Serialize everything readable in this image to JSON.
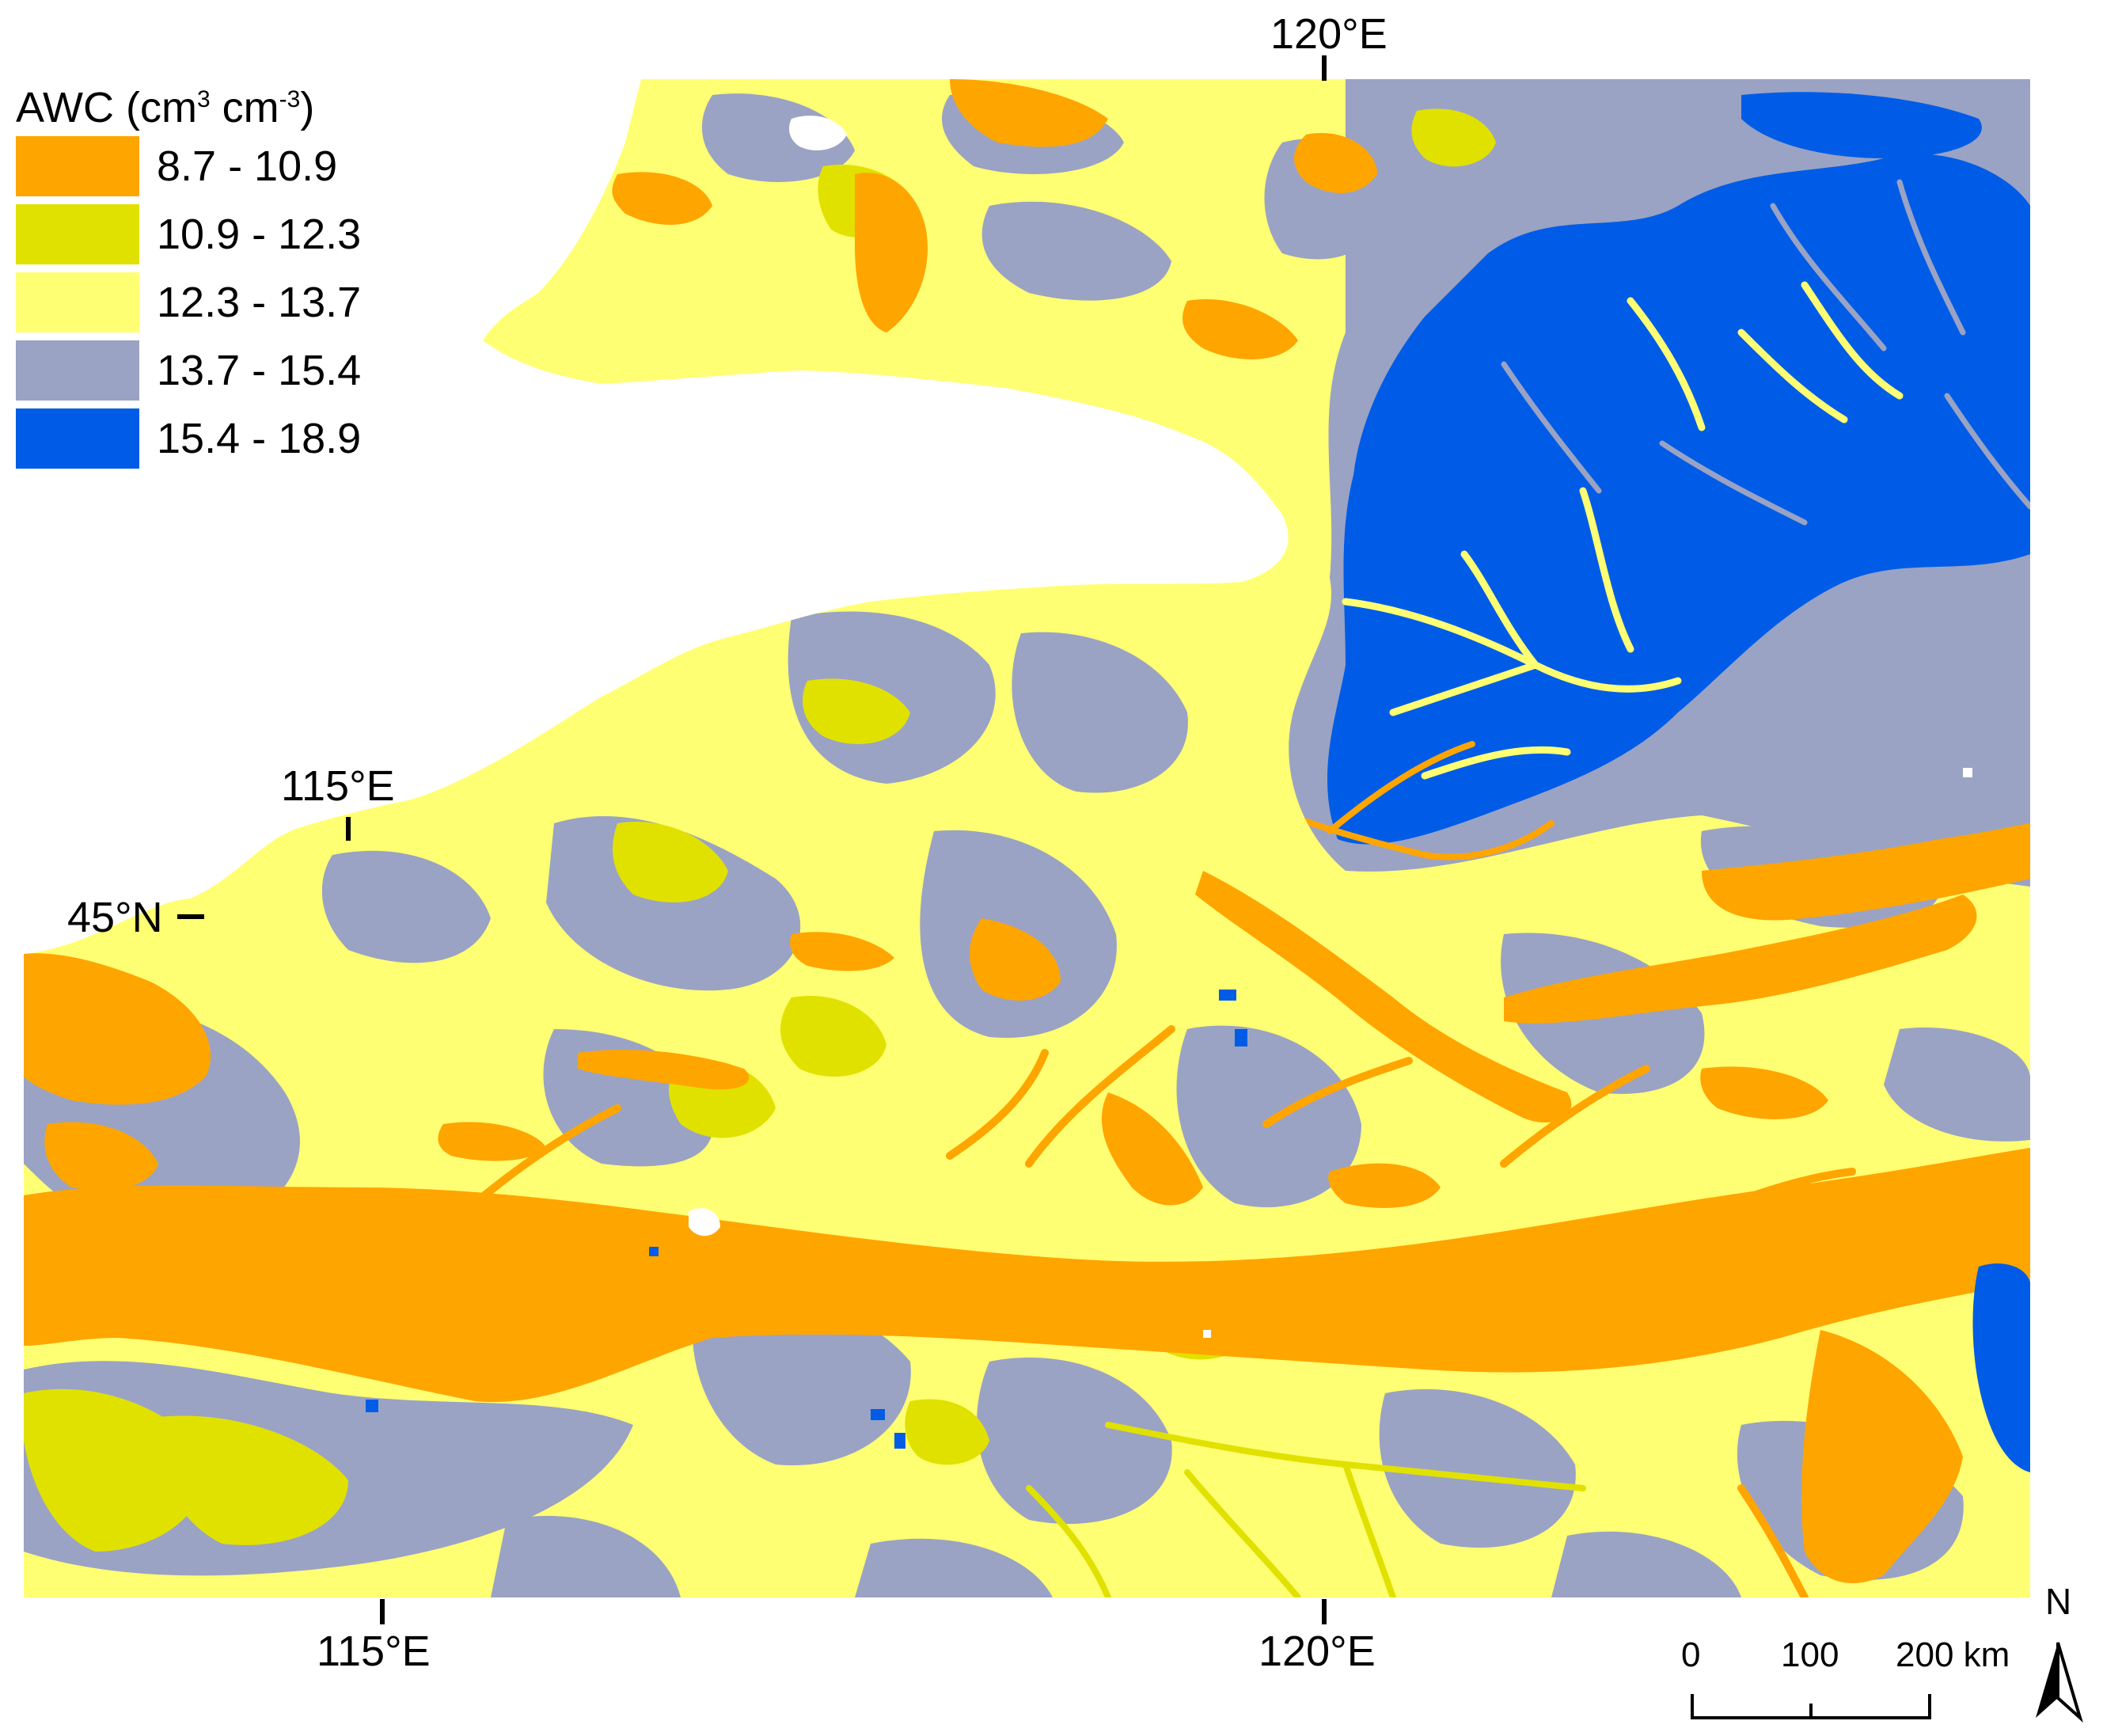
{
  "legend": {
    "title_prefix": "AWC (cm",
    "title_sup1": "3",
    "title_mid": " cm",
    "title_sup2": "-3",
    "title_suffix": ")",
    "classes": [
      {
        "label": "8.7 - 10.9",
        "color": "#FFA500"
      },
      {
        "label": "10.9 - 12.3",
        "color": "#E1E100"
      },
      {
        "label": "12.3 - 13.7",
        "color": "#FFFF73"
      },
      {
        "label": "13.7 - 15.4",
        "color": "#9AA3C4"
      },
      {
        "label": "15.4 - 18.9",
        "color": "#005CE6"
      }
    ]
  },
  "graticule": {
    "top_lon": "120°E",
    "inner_lon": "115°E",
    "inner_lat": "45°N",
    "bottom_lon_left": "115°E",
    "bottom_lon_right": "120°E"
  },
  "scale_bar": {
    "labels": [
      "0",
      "100",
      "200 km"
    ]
  },
  "north_arrow": {
    "label": "N",
    "icon": "north-arrow-icon"
  }
}
